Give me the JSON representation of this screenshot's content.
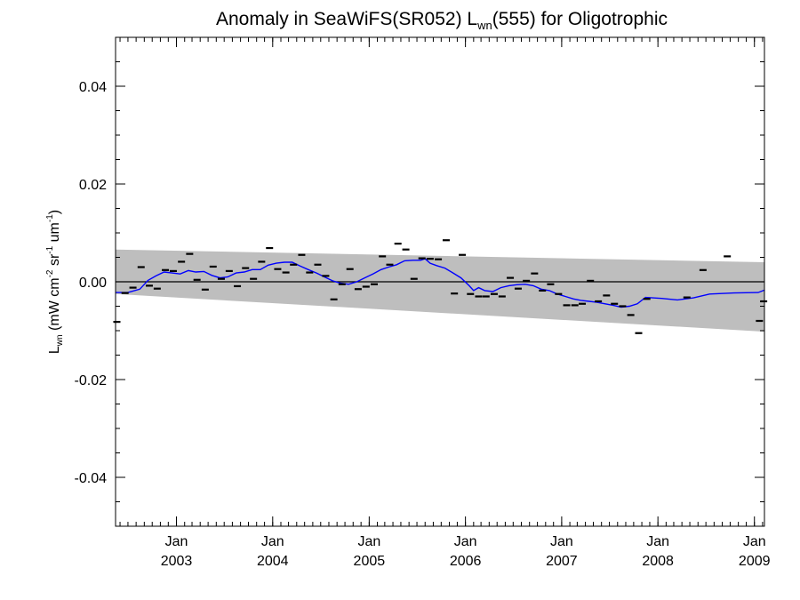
{
  "chart_data": {
    "type": "scatter",
    "title": {
      "pre": "Anomaly in SeaWiFS(SR052) L",
      "sub": "wn",
      "post": "(555) for Oligotrophic"
    },
    "ylabel": {
      "main": "L",
      "sub": "wn",
      "open": " (mW cm",
      "sup1": "-2",
      "mid1": " sr",
      "sup2": "-1",
      "mid2": " um",
      "sup3": "-1",
      "close": ")"
    },
    "xlim": [
      "2002-05-15",
      "2009-02-08"
    ],
    "ylim": [
      -0.05,
      0.05
    ],
    "y_ticks": [
      {
        "value": 0.04,
        "label": "0.04"
      },
      {
        "value": 0.02,
        "label": "0.02"
      },
      {
        "value": 0.0,
        "label": "0.00"
      },
      {
        "value": -0.02,
        "label": "-0.02"
      },
      {
        "value": -0.04,
        "label": "-0.04"
      }
    ],
    "y_minor_step": 0.005,
    "x_ticks": [
      {
        "date": "2003-01-01",
        "month": "Jan",
        "year": "2003"
      },
      {
        "date": "2004-01-01",
        "month": "Jan",
        "year": "2004"
      },
      {
        "date": "2005-01-01",
        "month": "Jan",
        "year": "2005"
      },
      {
        "date": "2006-01-01",
        "month": "Jan",
        "year": "2006"
      },
      {
        "date": "2007-01-01",
        "month": "Jan",
        "year": "2007"
      },
      {
        "date": "2008-01-01",
        "month": "Jan",
        "year": "2008"
      },
      {
        "date": "2009-01-01",
        "month": "Jan",
        "year": "2009"
      }
    ],
    "zero_line": 0.0,
    "band": {
      "color": "#bebebe",
      "start": {
        "date": "2002-05-15",
        "upper": 0.0066,
        "lower": -0.0025
      },
      "end": {
        "date": "2009-02-08",
        "upper": 0.004,
        "lower": -0.0102
      }
    },
    "observations": {
      "color": "#000000",
      "marker": "dash",
      "points": [
        {
          "x": "2002-05-20",
          "y": -0.0082
        },
        {
          "x": "2002-06-20",
          "y": -0.0023
        },
        {
          "x": "2002-07-20",
          "y": -0.0012
        },
        {
          "x": "2002-08-20",
          "y": 0.003
        },
        {
          "x": "2002-09-20",
          "y": -0.0008
        },
        {
          "x": "2002-10-20",
          "y": -0.0014
        },
        {
          "x": "2002-11-20",
          "y": 0.0024
        },
        {
          "x": "2002-12-20",
          "y": 0.0022
        },
        {
          "x": "2003-01-20",
          "y": 0.0041
        },
        {
          "x": "2003-02-20",
          "y": 0.0057
        },
        {
          "x": "2003-03-20",
          "y": 0.0004
        },
        {
          "x": "2003-04-20",
          "y": -0.0016
        },
        {
          "x": "2003-05-20",
          "y": 0.0031
        },
        {
          "x": "2003-06-20",
          "y": 0.0006
        },
        {
          "x": "2003-07-20",
          "y": 0.0022
        },
        {
          "x": "2003-08-20",
          "y": -0.0009
        },
        {
          "x": "2003-09-20",
          "y": 0.0028
        },
        {
          "x": "2003-10-20",
          "y": 0.0006
        },
        {
          "x": "2003-11-20",
          "y": 0.0041
        },
        {
          "x": "2003-12-20",
          "y": 0.0069
        },
        {
          "x": "2004-01-20",
          "y": 0.0026
        },
        {
          "x": "2004-02-20",
          "y": 0.0019
        },
        {
          "x": "2004-03-20",
          "y": 0.0035
        },
        {
          "x": "2004-04-20",
          "y": 0.0055
        },
        {
          "x": "2004-05-20",
          "y": 0.0019
        },
        {
          "x": "2004-06-20",
          "y": 0.0035
        },
        {
          "x": "2004-07-20",
          "y": 0.0012
        },
        {
          "x": "2004-08-20",
          "y": -0.0036
        },
        {
          "x": "2004-09-20",
          "y": -0.0005
        },
        {
          "x": "2004-10-20",
          "y": 0.0026
        },
        {
          "x": "2004-11-20",
          "y": -0.0015
        },
        {
          "x": "2004-12-20",
          "y": -0.001
        },
        {
          "x": "2005-01-20",
          "y": -0.0005
        },
        {
          "x": "2005-02-20",
          "y": 0.0052
        },
        {
          "x": "2005-03-20",
          "y": 0.0035
        },
        {
          "x": "2005-04-20",
          "y": 0.0078
        },
        {
          "x": "2005-05-20",
          "y": 0.0066
        },
        {
          "x": "2005-06-20",
          "y": 0.0006
        },
        {
          "x": "2005-07-20",
          "y": 0.0048
        },
        {
          "x": "2005-08-20",
          "y": 0.0047
        },
        {
          "x": "2005-09-20",
          "y": 0.0046
        },
        {
          "x": "2005-10-20",
          "y": 0.0085
        },
        {
          "x": "2005-11-20",
          "y": -0.0024
        },
        {
          "x": "2005-12-20",
          "y": 0.0055
        },
        {
          "x": "2006-01-20",
          "y": -0.0025
        },
        {
          "x": "2006-02-20",
          "y": -0.003
        },
        {
          "x": "2006-03-20",
          "y": -0.003
        },
        {
          "x": "2006-04-20",
          "y": -0.0025
        },
        {
          "x": "2006-05-20",
          "y": -0.003
        },
        {
          "x": "2006-06-20",
          "y": 0.0008
        },
        {
          "x": "2006-07-20",
          "y": -0.0014
        },
        {
          "x": "2006-08-20",
          "y": 0.0002
        },
        {
          "x": "2006-09-20",
          "y": 0.0017
        },
        {
          "x": "2006-10-20",
          "y": -0.0018
        },
        {
          "x": "2006-11-20",
          "y": -0.0005
        },
        {
          "x": "2006-12-20",
          "y": -0.0025
        },
        {
          "x": "2007-01-20",
          "y": -0.0048
        },
        {
          "x": "2007-02-20",
          "y": -0.0048
        },
        {
          "x": "2007-03-20",
          "y": -0.0045
        },
        {
          "x": "2007-04-20",
          "y": 0.0002
        },
        {
          "x": "2007-05-20",
          "y": -0.004
        },
        {
          "x": "2007-06-20",
          "y": -0.0028
        },
        {
          "x": "2007-07-20",
          "y": -0.0045
        },
        {
          "x": "2007-08-20",
          "y": -0.005
        },
        {
          "x": "2007-09-20",
          "y": -0.0068
        },
        {
          "x": "2007-10-20",
          "y": -0.0105
        },
        {
          "x": "2007-11-20",
          "y": -0.0035
        },
        {
          "x": "2008-04-20",
          "y": -0.0032
        },
        {
          "x": "2008-06-20",
          "y": 0.0024
        },
        {
          "x": "2008-09-20",
          "y": 0.0052
        },
        {
          "x": "2009-01-20",
          "y": -0.008
        },
        {
          "x": "2009-02-05",
          "y": -0.004
        }
      ]
    },
    "smoothed": {
      "color": "#0000ff",
      "points": [
        {
          "x": "2002-05-15",
          "y": -0.0022
        },
        {
          "x": "2002-07-01",
          "y": -0.0022
        },
        {
          "x": "2002-08-15",
          "y": -0.0015
        },
        {
          "x": "2002-09-15",
          "y": 0.0003
        },
        {
          "x": "2002-10-15",
          "y": 0.0012
        },
        {
          "x": "2002-11-15",
          "y": 0.002
        },
        {
          "x": "2002-12-15",
          "y": 0.0018
        },
        {
          "x": "2003-01-15",
          "y": 0.0016
        },
        {
          "x": "2003-02-15",
          "y": 0.0023
        },
        {
          "x": "2003-03-15",
          "y": 0.002
        },
        {
          "x": "2003-04-15",
          "y": 0.0021
        },
        {
          "x": "2003-05-15",
          "y": 0.0013
        },
        {
          "x": "2003-06-15",
          "y": 0.0008
        },
        {
          "x": "2003-07-15",
          "y": 0.001
        },
        {
          "x": "2003-08-15",
          "y": 0.0018
        },
        {
          "x": "2003-09-15",
          "y": 0.002
        },
        {
          "x": "2003-10-15",
          "y": 0.0025
        },
        {
          "x": "2003-11-15",
          "y": 0.0025
        },
        {
          "x": "2003-12-15",
          "y": 0.0034
        },
        {
          "x": "2004-01-15",
          "y": 0.0038
        },
        {
          "x": "2004-02-15",
          "y": 0.004
        },
        {
          "x": "2004-03-15",
          "y": 0.004
        },
        {
          "x": "2004-04-15",
          "y": 0.0032
        },
        {
          "x": "2004-05-15",
          "y": 0.0025
        },
        {
          "x": "2004-06-15",
          "y": 0.0018
        },
        {
          "x": "2004-07-15",
          "y": 0.001
        },
        {
          "x": "2004-08-15",
          "y": 0.0002
        },
        {
          "x": "2004-09-15",
          "y": -0.0003
        },
        {
          "x": "2004-10-15",
          "y": -0.0005
        },
        {
          "x": "2004-11-15",
          "y": 0.0
        },
        {
          "x": "2004-12-15",
          "y": 0.0008
        },
        {
          "x": "2005-01-15",
          "y": 0.0016
        },
        {
          "x": "2005-02-15",
          "y": 0.0025
        },
        {
          "x": "2005-03-15",
          "y": 0.003
        },
        {
          "x": "2005-04-15",
          "y": 0.0035
        },
        {
          "x": "2005-05-15",
          "y": 0.0043
        },
        {
          "x": "2005-06-15",
          "y": 0.0044
        },
        {
          "x": "2005-07-15",
          "y": 0.0044
        },
        {
          "x": "2005-08-01",
          "y": 0.0047
        },
        {
          "x": "2005-08-20",
          "y": 0.0038
        },
        {
          "x": "2005-09-15",
          "y": 0.0033
        },
        {
          "x": "2005-10-15",
          "y": 0.0028
        },
        {
          "x": "2005-11-15",
          "y": 0.0018
        },
        {
          "x": "2005-12-15",
          "y": 0.0008
        },
        {
          "x": "2006-01-15",
          "y": -0.0008
        },
        {
          "x": "2006-02-01",
          "y": -0.0018
        },
        {
          "x": "2006-02-20",
          "y": -0.0012
        },
        {
          "x": "2006-03-15",
          "y": -0.0018
        },
        {
          "x": "2006-04-15",
          "y": -0.002
        },
        {
          "x": "2006-05-15",
          "y": -0.0012
        },
        {
          "x": "2006-06-15",
          "y": -0.0008
        },
        {
          "x": "2006-07-15",
          "y": -0.0006
        },
        {
          "x": "2006-08-15",
          "y": -0.0005
        },
        {
          "x": "2006-09-15",
          "y": -0.0008
        },
        {
          "x": "2006-10-15",
          "y": -0.0015
        },
        {
          "x": "2006-11-15",
          "y": -0.0018
        },
        {
          "x": "2006-12-15",
          "y": -0.0025
        },
        {
          "x": "2007-01-15",
          "y": -0.003
        },
        {
          "x": "2007-02-15",
          "y": -0.0035
        },
        {
          "x": "2007-03-15",
          "y": -0.0038
        },
        {
          "x": "2007-04-15",
          "y": -0.004
        },
        {
          "x": "2007-05-15",
          "y": -0.0042
        },
        {
          "x": "2007-06-15",
          "y": -0.0045
        },
        {
          "x": "2007-07-15",
          "y": -0.0048
        },
        {
          "x": "2007-08-15",
          "y": -0.0052
        },
        {
          "x": "2007-09-15",
          "y": -0.005
        },
        {
          "x": "2007-10-15",
          "y": -0.0045
        },
        {
          "x": "2007-11-15",
          "y": -0.0032
        },
        {
          "x": "2008-01-15",
          "y": -0.0034
        },
        {
          "x": "2008-03-15",
          "y": -0.0037
        },
        {
          "x": "2008-05-15",
          "y": -0.0033
        },
        {
          "x": "2008-07-15",
          "y": -0.0025
        },
        {
          "x": "2008-10-15",
          "y": -0.0023
        },
        {
          "x": "2009-01-15",
          "y": -0.0022
        },
        {
          "x": "2009-02-08",
          "y": -0.0017
        }
      ]
    }
  }
}
